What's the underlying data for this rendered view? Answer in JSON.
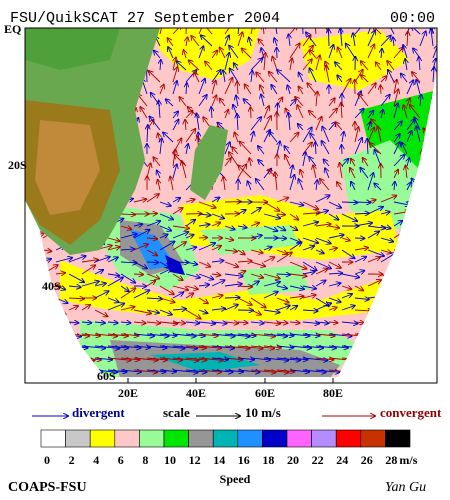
{
  "header": {
    "title": "FSU/QuikSCAT 27 September 2004",
    "time": "00:00"
  },
  "map": {
    "lat_labels": [
      "EQ",
      "20S",
      "40S",
      "60S"
    ],
    "lon_labels": [
      "20E",
      "40E",
      "60E",
      "80E"
    ]
  },
  "legend": {
    "divergent": "divergent",
    "scale": "scale",
    "scale_value": "10 m/s",
    "convergent": "convergent"
  },
  "colorbar": {
    "ticks": [
      0,
      2,
      4,
      6,
      8,
      10,
      12,
      14,
      16,
      18,
      20,
      22,
      24,
      26,
      28
    ],
    "unit": "m/s",
    "label": "Speed",
    "colors": [
      "#ffffff",
      "#c8c8c8",
      "#ffff00",
      "#ffc8c8",
      "#98fb98",
      "#00e600",
      "#969696",
      "#00b4b4",
      "#1e90ff",
      "#0000c8",
      "#ff64ff",
      "#b48cff",
      "#ff0000",
      "#c83200",
      "#000000"
    ]
  },
  "footer": {
    "left": "COAPS-FSU",
    "right": "Yan Gu"
  }
}
